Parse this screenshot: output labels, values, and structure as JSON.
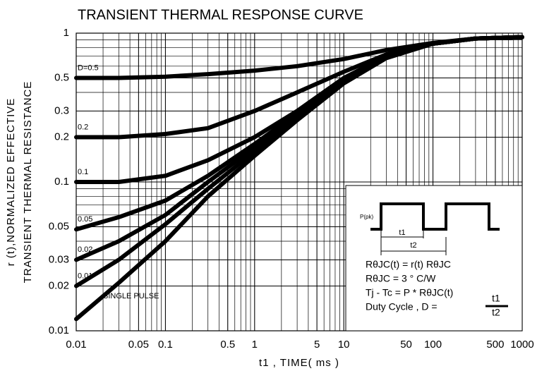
{
  "chart_data": {
    "type": "line",
    "title": "TRANSIENT THERMAL RESPONSE CURVE",
    "x_label": "t1 , TIME( ms )",
    "y_label": [
      "r (t),NORMALIZED EFFECTIVE",
      "TRANSIENT THERMAL RESISTANCE"
    ],
    "log_x": true,
    "log_y": true,
    "grid": true,
    "minor_grid": true,
    "xlim": [
      0.01,
      1000
    ],
    "ylim": [
      0.01,
      1
    ],
    "xticks": [
      0.01,
      0.05,
      0.1,
      0.5,
      1,
      5,
      10,
      50,
      100,
      500,
      1000
    ],
    "yticks": [
      0.01,
      0.02,
      0.03,
      0.05,
      0.1,
      0.2,
      0.3,
      0.5,
      1
    ],
    "x": [
      0.01,
      0.03,
      0.1,
      0.3,
      1,
      3,
      10,
      30,
      100,
      300,
      1000
    ],
    "series": [
      {
        "name": "D=0.5",
        "color": "#000000",
        "values": [
          0.5,
          0.5,
          0.51,
          0.53,
          0.56,
          0.6,
          0.67,
          0.77,
          0.86,
          0.92,
          0.94
        ]
      },
      {
        "name": "0.2",
        "color": "#000000",
        "values": [
          0.2,
          0.2,
          0.21,
          0.23,
          0.3,
          0.4,
          0.55,
          0.72,
          0.85,
          0.92,
          0.94
        ]
      },
      {
        "name": "0.1",
        "color": "#000000",
        "values": [
          0.1,
          0.1,
          0.11,
          0.14,
          0.2,
          0.3,
          0.5,
          0.7,
          0.85,
          0.92,
          0.94
        ]
      },
      {
        "name": "0.05",
        "color": "#000000",
        "values": [
          0.048,
          0.058,
          0.075,
          0.11,
          0.18,
          0.29,
          0.48,
          0.7,
          0.85,
          0.92,
          0.94
        ]
      },
      {
        "name": "0.02",
        "color": "#000000",
        "values": [
          0.03,
          0.04,
          0.06,
          0.1,
          0.17,
          0.28,
          0.47,
          0.69,
          0.85,
          0.92,
          0.94
        ]
      },
      {
        "name": "0.01",
        "color": "#000000",
        "values": [
          0.02,
          0.03,
          0.052,
          0.09,
          0.16,
          0.27,
          0.47,
          0.69,
          0.85,
          0.92,
          0.94
        ]
      },
      {
        "name": "SINGLE PULSE",
        "color": "#000000",
        "values": [
          0.012,
          0.021,
          0.04,
          0.08,
          0.15,
          0.26,
          0.46,
          0.68,
          0.85,
          0.92,
          0.94
        ]
      }
    ],
    "inset": {
      "pulse_label": "P(pk)",
      "t1": "t1",
      "t2": "t2",
      "lines": [
        "RθJC(t) = r(t)  RθJC",
        "RθJC = 3 °  C/W",
        "Tj - Tc = P * RθJC(t)",
        "Duty Cycle , D ="
      ],
      "fraction": [
        "t1",
        "t2"
      ]
    }
  }
}
